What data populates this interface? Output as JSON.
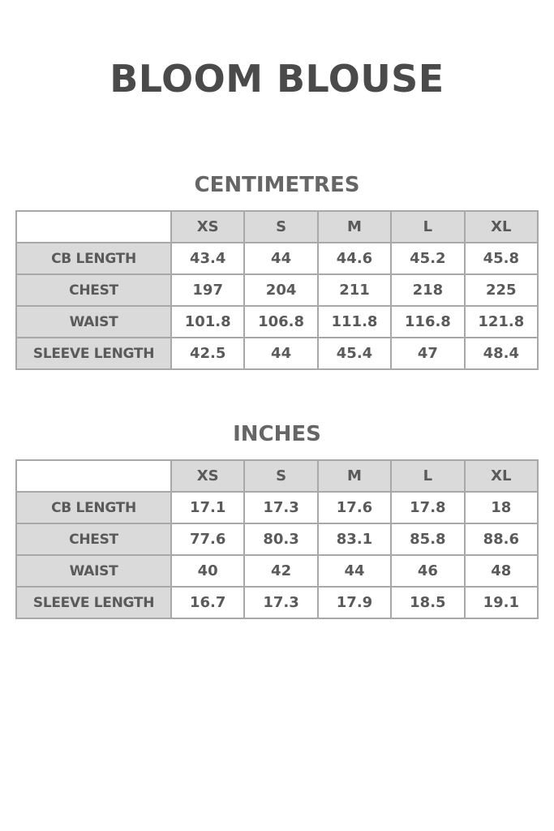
{
  "title": "BLOOM BLOUSE",
  "sizes": [
    "XS",
    "S",
    "M",
    "L",
    "XL"
  ],
  "tables": [
    {
      "heading": "CENTIMETRES",
      "rows": [
        {
          "label": "CB LENGTH",
          "values": [
            "43.4",
            "44",
            "44.6",
            "45.2",
            "45.8"
          ]
        },
        {
          "label": "CHEST",
          "values": [
            "197",
            "204",
            "211",
            "218",
            "225"
          ]
        },
        {
          "label": "WAIST",
          "values": [
            "101.8",
            "106.8",
            "111.8",
            "116.8",
            "121.8"
          ]
        },
        {
          "label": "SLEEVE LENGTH",
          "values": [
            "42.5",
            "44",
            "45.4",
            "47",
            "48.4"
          ]
        }
      ]
    },
    {
      "heading": "INCHES",
      "rows": [
        {
          "label": "CB LENGTH",
          "values": [
            "17.1",
            "17.3",
            "17.6",
            "17.8",
            "18"
          ]
        },
        {
          "label": "CHEST",
          "values": [
            "77.6",
            "80.3",
            "83.1",
            "85.8",
            "88.6"
          ]
        },
        {
          "label": "WAIST",
          "values": [
            "40",
            "42",
            "44",
            "46",
            "48"
          ]
        },
        {
          "label": "SLEEVE LENGTH",
          "values": [
            "16.7",
            "17.3",
            "17.9",
            "18.5",
            "19.1"
          ]
        }
      ]
    }
  ],
  "colors": {
    "header_fill": "#dadada",
    "border": "#a8a8a8",
    "text": "#5a5a5a"
  }
}
